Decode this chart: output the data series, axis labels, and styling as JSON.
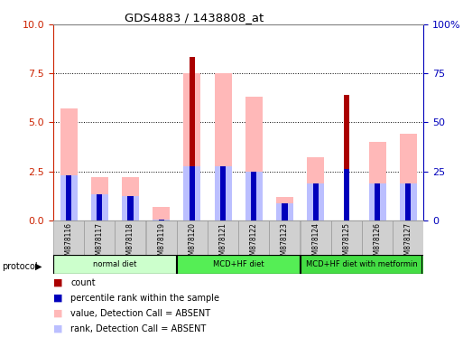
{
  "title": "GDS4883 / 1438808_at",
  "samples": [
    "GSM878116",
    "GSM878117",
    "GSM878118",
    "GSM878119",
    "GSM878120",
    "GSM878121",
    "GSM878122",
    "GSM878123",
    "GSM878124",
    "GSM878125",
    "GSM878126",
    "GSM878127"
  ],
  "count": [
    0,
    0,
    0,
    0,
    8.35,
    0,
    0,
    0,
    0,
    6.4,
    0,
    0
  ],
  "percentile_rank": [
    2.3,
    1.35,
    1.25,
    0.05,
    2.75,
    2.75,
    2.5,
    0.85,
    1.9,
    2.6,
    1.9,
    1.9
  ],
  "value_absent": [
    5.7,
    2.2,
    2.2,
    0.7,
    7.5,
    7.5,
    6.3,
    1.2,
    3.2,
    0,
    4.0,
    4.4
  ],
  "rank_absent": [
    2.3,
    1.35,
    1.25,
    0.05,
    2.75,
    2.75,
    2.5,
    0.85,
    1.9,
    0,
    1.9,
    1.9
  ],
  "groups": [
    {
      "label": "normal diet",
      "start": 0,
      "end": 3,
      "color": "#ccffcc"
    },
    {
      "label": "MCD+HF diet",
      "start": 4,
      "end": 7,
      "color": "#55ee55"
    },
    {
      "label": "MCD+HF diet with metformin",
      "start": 8,
      "end": 11,
      "color": "#44dd44"
    }
  ],
  "ylim_left": [
    0,
    10
  ],
  "ylim_right": [
    0,
    100
  ],
  "yticks_left": [
    0,
    2.5,
    5,
    7.5,
    10
  ],
  "yticks_right": [
    0,
    25,
    50,
    75,
    100
  ],
  "color_count": "#aa0000",
  "color_percentile": "#0000bb",
  "color_value_absent": "#ffb8b8",
  "color_rank_absent": "#bbbfff",
  "left_tick_color": "#cc2200",
  "right_tick_color": "#0000bb",
  "wide_bar_width": 0.55,
  "narrow_bar_width": 0.18,
  "grid_color": "#000000"
}
